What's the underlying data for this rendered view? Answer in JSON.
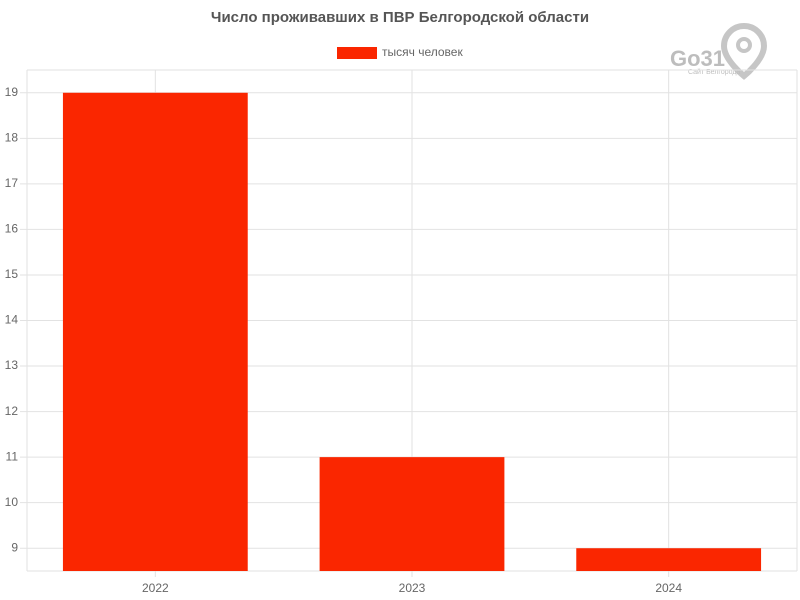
{
  "chart_data": {
    "type": "bar",
    "title": "Число проживавших в ПВР Белгородской области",
    "categories": [
      "2022",
      "2023",
      "2024"
    ],
    "series": [
      {
        "name": "тысяч человек",
        "color": "#fa2600",
        "values": [
          19,
          11,
          9
        ]
      }
    ],
    "ylim": [
      8.5,
      19.5
    ],
    "yticks": [
      9,
      10,
      11,
      12,
      13,
      14,
      15,
      16,
      17,
      18,
      19
    ],
    "grid": true
  },
  "logo": {
    "text": "Go31",
    "subtitle": "Сайт Белгорода"
  }
}
